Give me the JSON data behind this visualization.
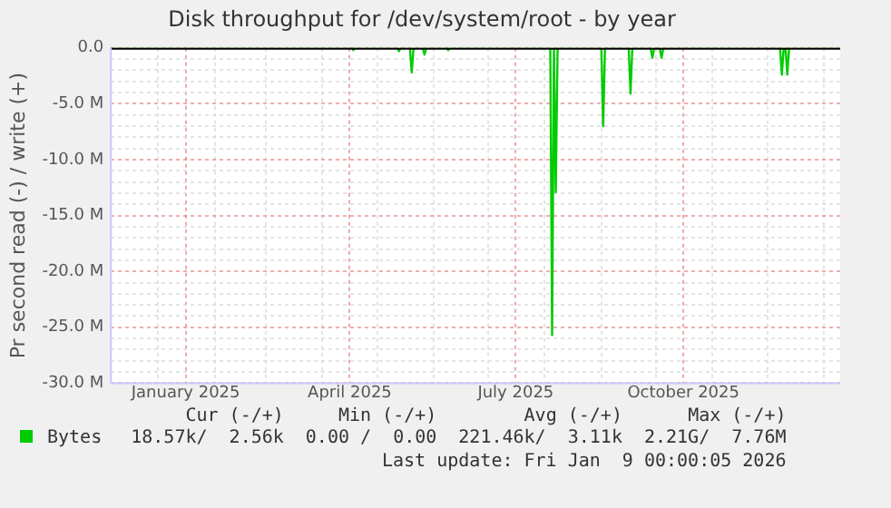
{
  "chart_data": {
    "type": "line",
    "title": "Disk throughput for /dev/system/root - by year",
    "ylabel": "Pr second read (-) / write (+)",
    "x": [
      "2024-12-06",
      "2025-04-17",
      "2025-04-18",
      "2025-04-19",
      "2025-05-12",
      "2025-05-13",
      "2025-05-14",
      "2025-05-19",
      "2025-05-20",
      "2025-05-21",
      "2025-05-26",
      "2025-05-27",
      "2025-05-28",
      "2025-06-08",
      "2025-06-09",
      "2025-06-10",
      "2025-08-04",
      "2025-08-05",
      "2025-08-06",
      "2025-08-07",
      "2025-08-08",
      "2025-09-01",
      "2025-09-02",
      "2025-09-03",
      "2025-09-16",
      "2025-09-17",
      "2025-09-18",
      "2025-09-28",
      "2025-09-29",
      "2025-09-30",
      "2025-10-03",
      "2025-10-04",
      "2025-10-05",
      "2025-12-08",
      "2025-12-09",
      "2025-12-10",
      "2025-12-11",
      "2025-12-12",
      "2025-12-13",
      "2026-01-09"
    ],
    "series": [
      {
        "name": "Bytes",
        "color": "#00cc00",
        "values": [
          0,
          0,
          -200000,
          0,
          0,
          -300000,
          0,
          0,
          -2200000,
          0,
          0,
          -600000,
          0,
          0,
          -200000,
          0,
          0,
          -25700000,
          0,
          -12900000,
          0,
          0,
          -7000000,
          0,
          0,
          -4100000,
          0,
          0,
          -900000,
          0,
          0,
          -900000,
          0,
          0,
          -2400000,
          0,
          0,
          -2400000,
          0,
          0
        ]
      }
    ],
    "xlim": [
      "2024-12-06",
      "2026-01-10"
    ],
    "xticks": [
      {
        "value": "2025-01-01",
        "label": null
      },
      {
        "value": "2025-01-16",
        "label": "January 2025"
      },
      {
        "value": "2025-02-01",
        "label": null
      },
      {
        "value": "2025-03-01",
        "label": null
      },
      {
        "value": "2025-04-01",
        "label": null
      },
      {
        "value": "2025-04-16",
        "label": "April 2025"
      },
      {
        "value": "2025-05-01",
        "label": null
      },
      {
        "value": "2025-06-01",
        "label": null
      },
      {
        "value": "2025-07-01",
        "label": null
      },
      {
        "value": "2025-07-16",
        "label": "July 2025"
      },
      {
        "value": "2025-08-01",
        "label": null
      },
      {
        "value": "2025-09-01",
        "label": null
      },
      {
        "value": "2025-10-01",
        "label": null
      },
      {
        "value": "2025-10-16",
        "label": "October 2025"
      },
      {
        "value": "2025-11-01",
        "label": null
      },
      {
        "value": "2025-12-01",
        "label": null
      },
      {
        "value": "2026-01-01",
        "label": null
      }
    ],
    "ylim": [
      -30000000,
      0
    ],
    "yticks": [
      {
        "value": -30000000,
        "label": "-30.0 M"
      },
      {
        "value": -29000000,
        "label": null
      },
      {
        "value": -28000000,
        "label": null
      },
      {
        "value": -27000000,
        "label": null
      },
      {
        "value": -26000000,
        "label": null
      },
      {
        "value": -25000000,
        "label": "-25.0 M"
      },
      {
        "value": -24000000,
        "label": null
      },
      {
        "value": -23000000,
        "label": null
      },
      {
        "value": -22000000,
        "label": null
      },
      {
        "value": -21000000,
        "label": null
      },
      {
        "value": -20000000,
        "label": "-20.0 M"
      },
      {
        "value": -19000000,
        "label": null
      },
      {
        "value": -18000000,
        "label": null
      },
      {
        "value": -17000000,
        "label": null
      },
      {
        "value": -16000000,
        "label": null
      },
      {
        "value": -15000000,
        "label": "-15.0 M"
      },
      {
        "value": -14000000,
        "label": null
      },
      {
        "value": -13000000,
        "label": null
      },
      {
        "value": -12000000,
        "label": null
      },
      {
        "value": -11000000,
        "label": null
      },
      {
        "value": -10000000,
        "label": "-10.0 M"
      },
      {
        "value": -9000000,
        "label": null
      },
      {
        "value": -8000000,
        "label": null
      },
      {
        "value": -7000000,
        "label": null
      },
      {
        "value": -6000000,
        "label": null
      },
      {
        "value": -5000000,
        "label": "-5.0 M"
      },
      {
        "value": -4000000,
        "label": null
      },
      {
        "value": -3000000,
        "label": null
      },
      {
        "value": -2000000,
        "label": null
      },
      {
        "value": -1000000,
        "label": null
      },
      {
        "value": 0,
        "label": "0.0"
      }
    ],
    "grid": true,
    "legend": "bottom",
    "marker": "none",
    "line_style": "solid",
    "annotations": [
      "Cur (-/+)",
      "Min (-/+)",
      "Avg (-/+)",
      "Max (-/+)",
      "18.57k/  2.56k",
      "0.00 /  0.00",
      "221.46k/  3.11k",
      "2.21G/  7.76M",
      "Last update: Fri Jan  9 00:00:05 2026"
    ]
  }
}
